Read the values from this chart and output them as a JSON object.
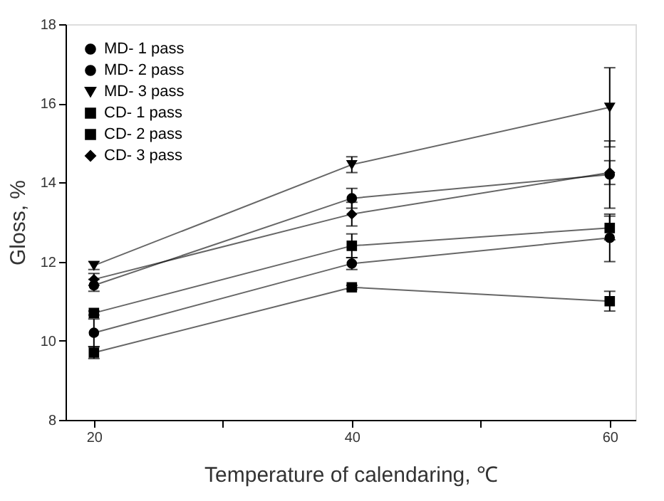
{
  "chart_data": {
    "type": "line",
    "xlabel": "Temperature of calendaring, ℃",
    "ylabel": "Gloss, %",
    "x": [
      20,
      40,
      60
    ],
    "xlim": [
      17.8,
      62
    ],
    "xticks": [
      20,
      {
        "value": 30,
        "label": null
      },
      40,
      {
        "value": 50,
        "label": null
      },
      60
    ],
    "ylim": [
      8,
      18
    ],
    "yticks": [
      8,
      10,
      12,
      14,
      16,
      18
    ],
    "grid": false,
    "legend": "top left",
    "line_style": "solid",
    "series": [
      {
        "name": "MD- 1 pass",
        "color": "#000000",
        "marker": "circle",
        "values": [
          10.2,
          11.95,
          12.6
        ],
        "errors": [
          0.35,
          0.15,
          0.6
        ]
      },
      {
        "name": "MD- 2 pass",
        "color": "#000000",
        "marker": "circle",
        "values": [
          11.4,
          13.6,
          14.2
        ],
        "errors": [
          0.15,
          0.25,
          0.85
        ]
      },
      {
        "name": "MD- 3 pass",
        "color": "#000000",
        "marker": "triangle",
        "values": [
          11.9,
          14.45,
          15.9
        ],
        "errors": [
          0.1,
          0.2,
          1.0
        ]
      },
      {
        "name": "CD- 1 pass",
        "color": "#000000",
        "marker": "square",
        "values": [
          9.7,
          11.35,
          11.0
        ],
        "errors": [
          0.15,
          0.05,
          0.25
        ]
      },
      {
        "name": "CD- 2 pass",
        "color": "#000000",
        "marker": "square",
        "values": [
          10.7,
          12.4,
          12.85
        ],
        "errors": [
          0.05,
          0.3,
          0.3
        ]
      },
      {
        "name": "CD- 3 pass",
        "color": "#000000",
        "marker": "diamond",
        "values": [
          11.55,
          13.2,
          14.25
        ],
        "errors": [
          0.15,
          0.3,
          0.3
        ]
      }
    ]
  }
}
